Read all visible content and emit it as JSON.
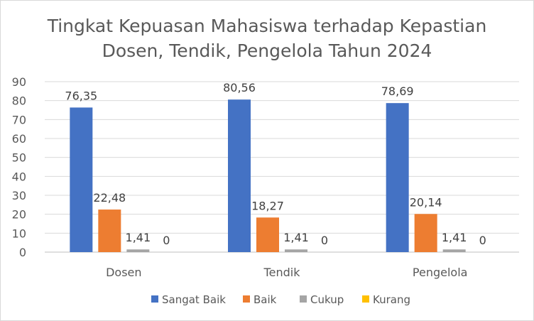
{
  "chart_data": {
    "type": "bar",
    "title_lines": [
      "Tingkat Kepuasan Mahasiswa terhadap Kepastian",
      "Dosen, Tendik, Pengelola Tahun 2024"
    ],
    "categories": [
      "Dosen",
      "Tendik",
      "Pengelola"
    ],
    "series": [
      {
        "name": "Sangat Baik",
        "values": [
          76.35,
          80.56,
          78.69
        ],
        "labels": [
          "76,35",
          "80,56",
          "78,69"
        ],
        "color": "#4472C4"
      },
      {
        "name": "Baik",
        "values": [
          22.48,
          18.27,
          20.14
        ],
        "labels": [
          "22,48",
          "18,27",
          "20,14"
        ],
        "color": "#ED7D31"
      },
      {
        "name": "Cukup",
        "values": [
          1.41,
          1.41,
          1.41
        ],
        "labels": [
          "1,41",
          "1,41",
          "1,41"
        ],
        "color": "#A5A5A5"
      },
      {
        "name": "Kurang",
        "values": [
          0,
          0,
          0
        ],
        "labels": [
          "0",
          "0",
          "0"
        ],
        "color": "#FFC000"
      }
    ],
    "ylim": [
      0,
      90
    ],
    "yticks": [
      0,
      10,
      20,
      30,
      40,
      50,
      60,
      70,
      80,
      90
    ],
    "grid": true,
    "legend": "bottom"
  }
}
